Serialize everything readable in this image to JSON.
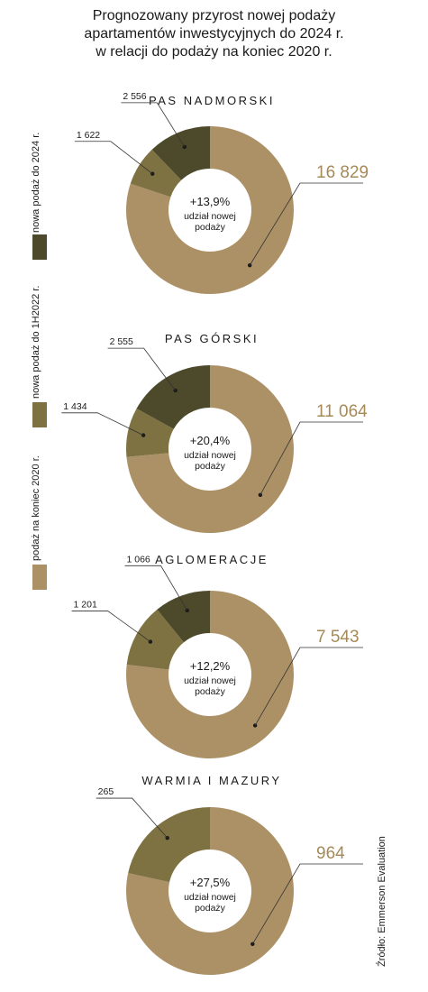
{
  "title": {
    "line1": "Prognozowany przyrost nowej podaży",
    "line2": "apartamentów inwestycyjnych do 2024 r.",
    "line3": "w relacji do podaży na koniec 2020 r."
  },
  "legend": [
    {
      "label": "nowa podaż do 2024 r.",
      "color": "#4c4a2a"
    },
    {
      "label": "nowa podaż do 1H2022 r.",
      "color": "#7f7242"
    },
    {
      "label": "podaż na koniec 2020 r.",
      "color": "#ad9166"
    }
  ],
  "source": "Źródło: Emmerson Evaluation",
  "colors": {
    "supply_2020": "#ad9166",
    "new_1h2022": "#7f7242",
    "new_2024": "#4c4a2a",
    "big_label": "#a58a57"
  },
  "chart_data": [
    {
      "type": "pie",
      "title": "PAS NADMORSKI",
      "labels": [
        "podaż na koniec 2020 r.",
        "nowa podaż do 1H2022 r.",
        "nowa podaż do 2024 r."
      ],
      "values": [
        16829,
        1622,
        2556
      ],
      "value_labels": [
        "16 829",
        "1 622",
        "2 556"
      ],
      "center_value": "+13,9%",
      "center_text": [
        "udział nowej",
        "podaży"
      ]
    },
    {
      "type": "pie",
      "title": "PAS GÓRSKI",
      "labels": [
        "podaż na koniec 2020 r.",
        "nowa podaż do 1H2022 r.",
        "nowa podaż do 2024 r."
      ],
      "values": [
        11064,
        1434,
        2555
      ],
      "value_labels": [
        "11 064",
        "1 434",
        "2 555"
      ],
      "center_value": "+20,4%",
      "center_text": [
        "udział nowej",
        "podaży"
      ]
    },
    {
      "type": "pie",
      "title": "AGLOMERACJE",
      "labels": [
        "podaż na koniec 2020 r.",
        "nowa podaż do 1H2022 r.",
        "nowa podaż do 2024 r."
      ],
      "values": [
        7543,
        1201,
        1066
      ],
      "value_labels": [
        "7 543",
        "1 201",
        "1 066"
      ],
      "center_value": "+12,2%",
      "center_text": [
        "udział nowej",
        "podaży"
      ]
    },
    {
      "type": "pie",
      "title": "WARMIA I MAZURY",
      "labels": [
        "podaż na koniec 2020 r.",
        "nowa podaż do 1H2022 r."
      ],
      "values": [
        964,
        265
      ],
      "value_labels": [
        "964",
        "265"
      ],
      "center_value": "+27,5%",
      "center_text": [
        "udział nowej",
        "podaży"
      ]
    }
  ]
}
